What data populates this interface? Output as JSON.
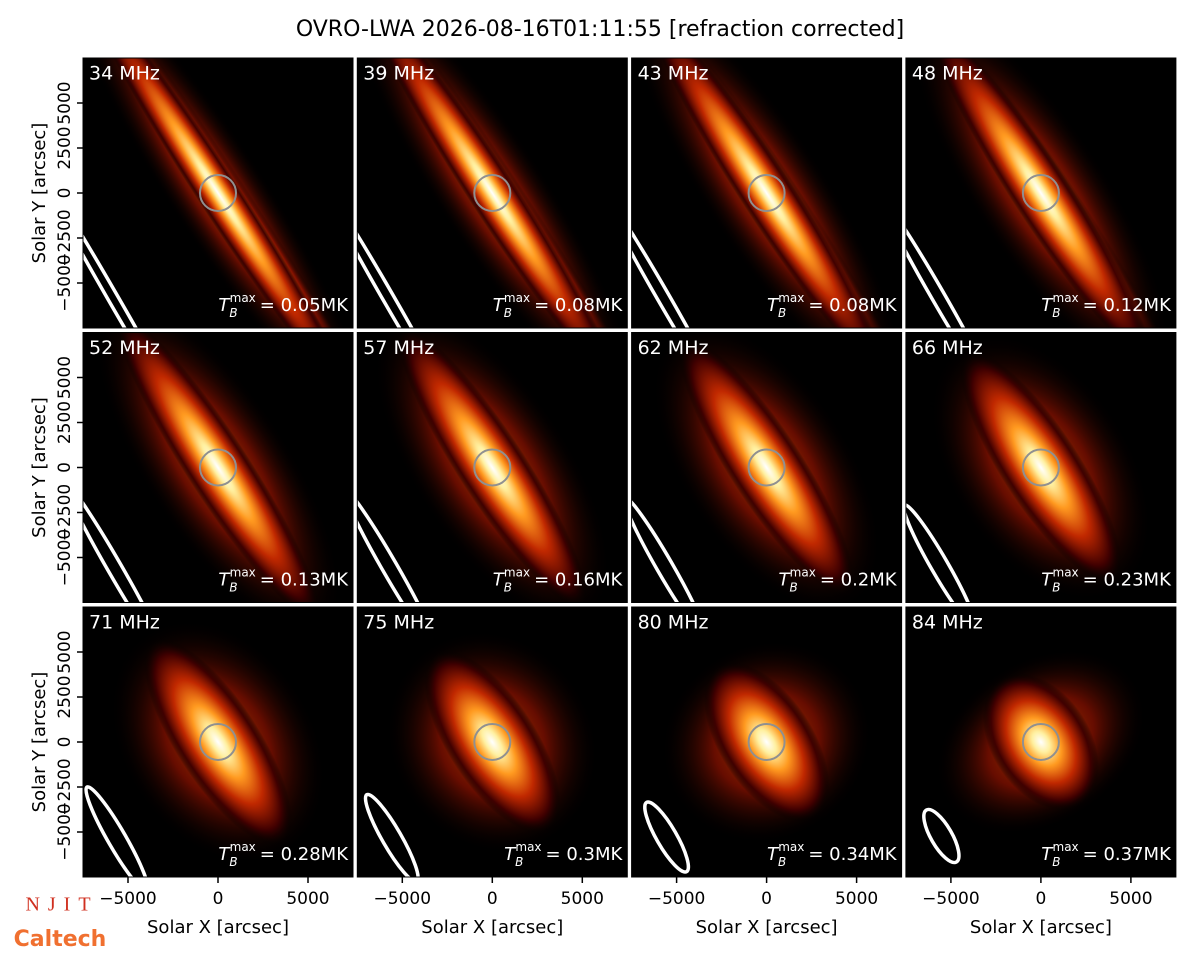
{
  "chart_data": {
    "type": "image-grid",
    "title": "OVRO-LWA 2026-08-16T01:11:55 [refraction corrected]",
    "xlabel": "Solar X [arcsec]",
    "ylabel": "Solar Y [arcsec]",
    "xlim": [
      -7500,
      7500
    ],
    "ylim": [
      -7500,
      7500
    ],
    "xticks": [
      {
        "value": -5000,
        "label": "−5000"
      },
      0,
      5000
    ],
    "yticks": [
      {
        "value": -5000,
        "label": "−5000"
      },
      {
        "value": -2500,
        "label": "−2500"
      },
      0,
      2500,
      5000
    ],
    "tb_symbol": "T",
    "tb_sub": "B",
    "tb_sup": "max",
    "panels": [
      {
        "label": "34 MHz",
        "tb": "= 0.05MK"
      },
      {
        "label": "39 MHz",
        "tb": "= 0.08MK"
      },
      {
        "label": "43 MHz",
        "tb": "= 0.08MK"
      },
      {
        "label": "48 MHz",
        "tb": "= 0.12MK"
      },
      {
        "label": "52 MHz",
        "tb": "= 0.13MK"
      },
      {
        "label": "57 MHz",
        "tb": "= 0.16MK"
      },
      {
        "label": "62 MHz",
        "tb": "= 0.2MK"
      },
      {
        "label": "66 MHz",
        "tb": "= 0.23MK"
      },
      {
        "label": "71 MHz",
        "tb": "= 0.28MK"
      },
      {
        "label": "75 MHz",
        "tb": "= 0.3MK"
      },
      {
        "label": "80 MHz",
        "tb": "= 0.34MK"
      },
      {
        "label": "84 MHz",
        "tb": "= 0.37MK"
      }
    ]
  },
  "logos": [
    "NJIT",
    "Caltech"
  ]
}
